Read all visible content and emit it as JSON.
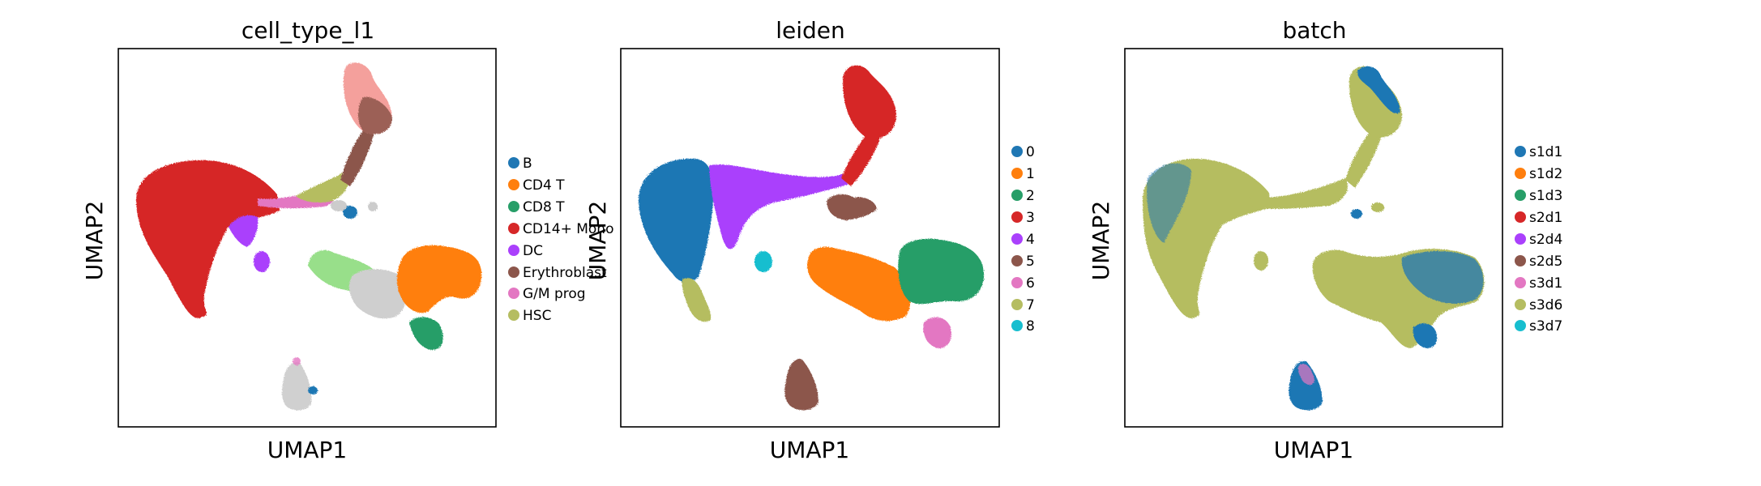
{
  "chart_data": [
    {
      "type": "scatter",
      "title": "cell_type_l1",
      "xlabel": "UMAP1",
      "ylabel": "UMAP2",
      "grid": false,
      "legend_position": "right",
      "series": [
        {
          "name": "B",
          "color": "#1f77b4"
        },
        {
          "name": "CD4 T",
          "color": "#ff7f0e"
        },
        {
          "name": "CD8 T",
          "color": "#279e68"
        },
        {
          "name": "CD14+ Mono",
          "color": "#d62728"
        },
        {
          "name": "DC",
          "color": "#aa40fc"
        },
        {
          "name": "Erythroblast",
          "color": "#8c564b"
        },
        {
          "name": "G/M prog",
          "color": "#e377c2"
        },
        {
          "name": "HSC",
          "color": "#b5bd61"
        }
      ]
    },
    {
      "type": "scatter",
      "title": "leiden",
      "xlabel": "UMAP1",
      "ylabel": "UMAP2",
      "grid": false,
      "legend_position": "right",
      "series": [
        {
          "name": "0",
          "color": "#1f77b4"
        },
        {
          "name": "1",
          "color": "#ff7f0e"
        },
        {
          "name": "2",
          "color": "#279e68"
        },
        {
          "name": "3",
          "color": "#d62728"
        },
        {
          "name": "4",
          "color": "#aa40fc"
        },
        {
          "name": "5",
          "color": "#8c564b"
        },
        {
          "name": "6",
          "color": "#e377c2"
        },
        {
          "name": "7",
          "color": "#b5bd61"
        },
        {
          "name": "8",
          "color": "#17becf"
        }
      ]
    },
    {
      "type": "scatter",
      "title": "batch",
      "xlabel": "UMAP1",
      "ylabel": "UMAP2",
      "grid": false,
      "legend_position": "right",
      "series": [
        {
          "name": "s1d1",
          "color": "#1f77b4"
        },
        {
          "name": "s1d2",
          "color": "#ff7f0e"
        },
        {
          "name": "s1d3",
          "color": "#279e68"
        },
        {
          "name": "s2d1",
          "color": "#d62728"
        },
        {
          "name": "s2d4",
          "color": "#aa40fc"
        },
        {
          "name": "s2d5",
          "color": "#8c564b"
        },
        {
          "name": "s3d1",
          "color": "#e377c2"
        },
        {
          "name": "s3d6",
          "color": "#b5bd61"
        },
        {
          "name": "s3d7",
          "color": "#17becf"
        }
      ]
    }
  ]
}
